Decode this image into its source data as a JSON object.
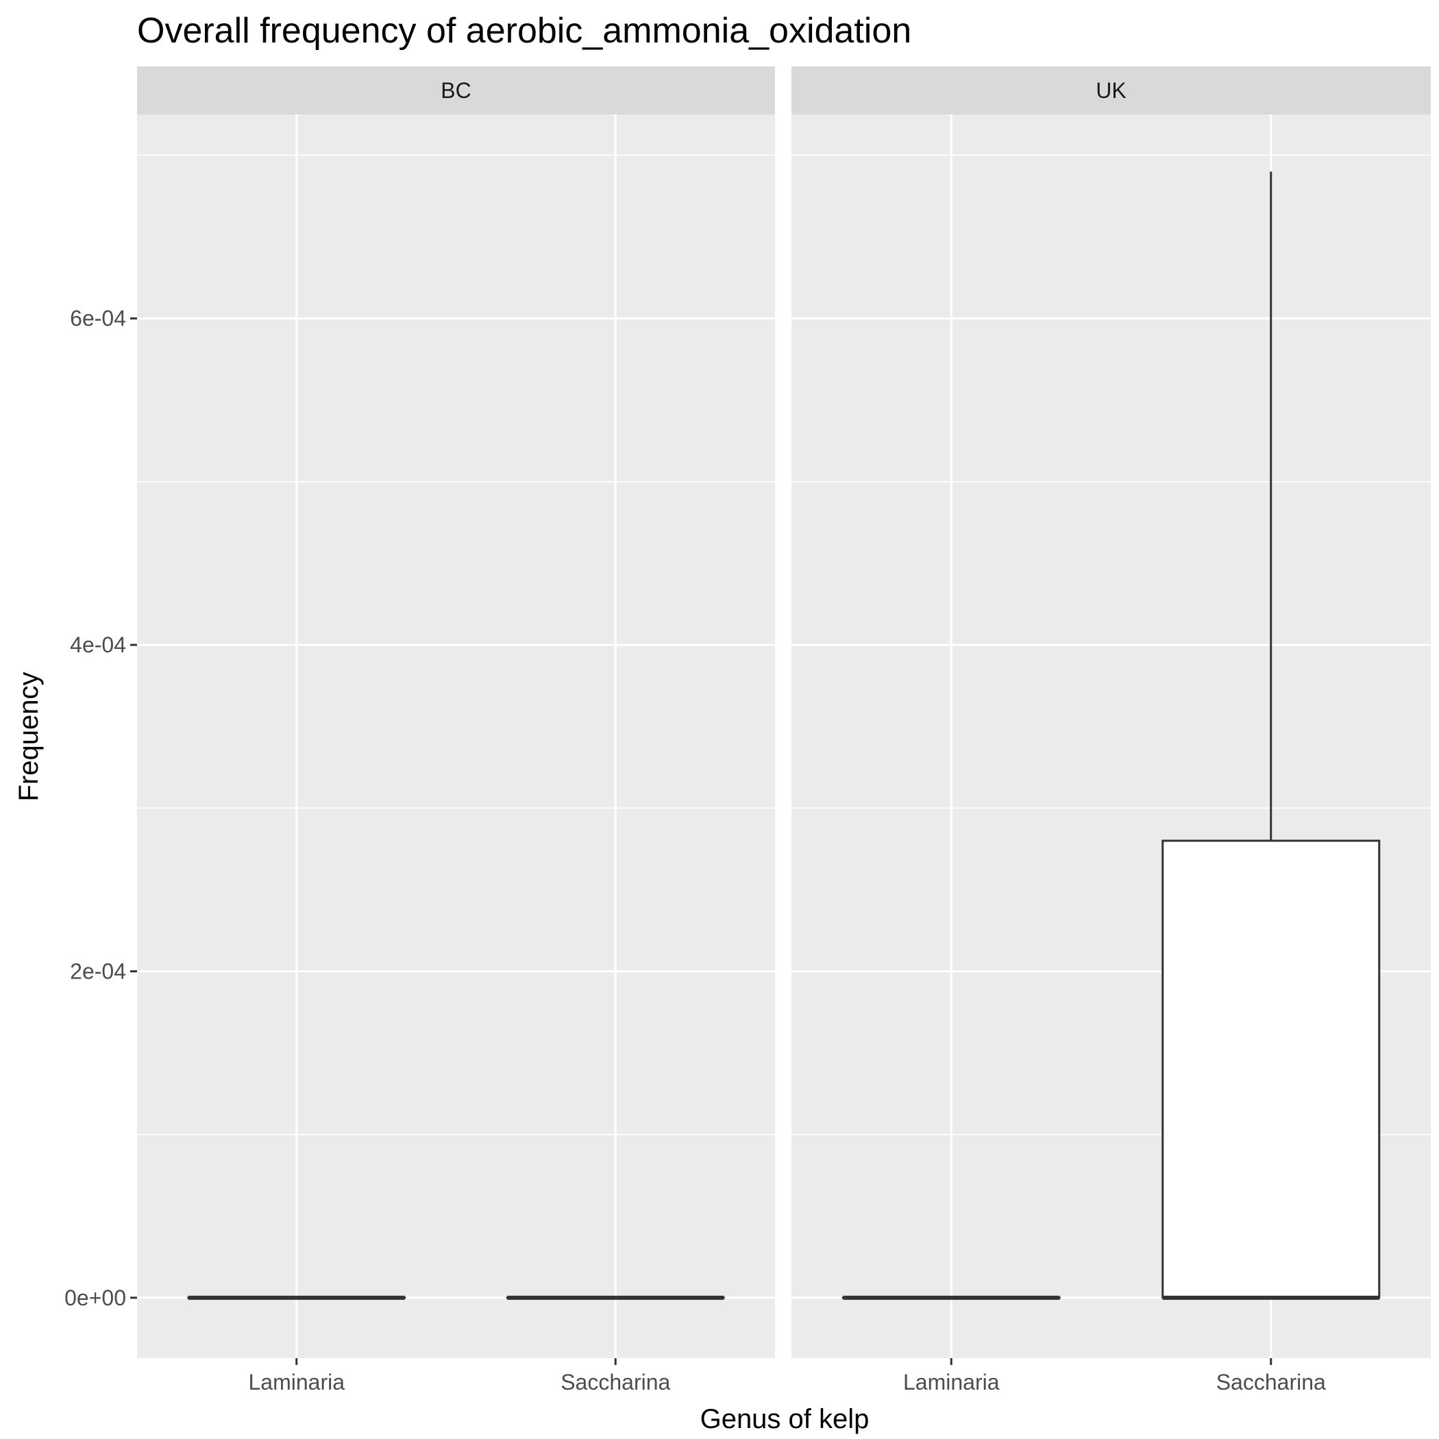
{
  "chart_data": {
    "type": "boxplot",
    "title": "Overall frequency of aerobic_ammonia_oxidation",
    "xlabel": "Genus of kelp",
    "ylabel": "Frequency",
    "ylim": [
      -3.7e-05,
      0.000725
    ],
    "yticks": [
      {
        "value": 0,
        "label": "0e+00"
      },
      {
        "value": 0.0002,
        "label": "2e-04"
      },
      {
        "value": 0.0004,
        "label": "4e-04"
      },
      {
        "value": 0.0006,
        "label": "6e-04"
      }
    ],
    "y_minor_ticks": [
      0.0001,
      0.0003,
      0.0005,
      0.0007
    ],
    "categories": [
      "Laminaria",
      "Saccharina"
    ],
    "grid": true,
    "colors": {
      "panel_background": "#ebebeb",
      "strip_background": "#d9d9d9",
      "grid": "#ffffff",
      "box_fill": "#ffffff",
      "box_line": "#333333"
    },
    "facets": [
      {
        "name": "BC",
        "boxes": [
          {
            "category": "Laminaria",
            "min": 0,
            "q1": 0,
            "median": 0,
            "q3": 0,
            "max": 0
          },
          {
            "category": "Saccharina",
            "min": 0,
            "q1": 0,
            "median": 0,
            "q3": 0,
            "max": 0
          }
        ]
      },
      {
        "name": "UK",
        "boxes": [
          {
            "category": "Laminaria",
            "min": 0,
            "q1": 0,
            "median": 0,
            "q3": 0,
            "max": 0
          },
          {
            "category": "Saccharina",
            "min": 0,
            "q1": 0,
            "median": 0,
            "q3": 0.00028,
            "max": 0.00069
          }
        ]
      }
    ]
  }
}
